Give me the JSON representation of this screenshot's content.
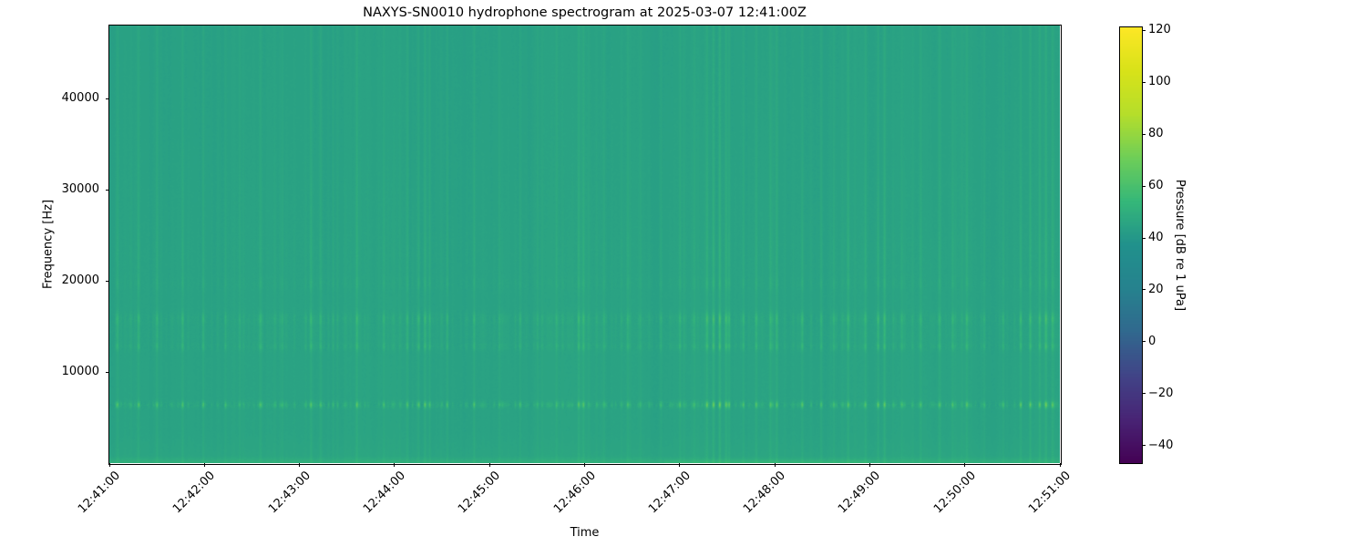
{
  "figure": {
    "title": "NAXYS-SN0010 hydrophone spectrogram at 2025-03-07 12:41:00Z",
    "background_color": "#ffffff"
  },
  "chart_data": {
    "type": "heatmap",
    "subtype": "spectrogram",
    "title": "NAXYS-SN0010 hydrophone spectrogram at 2025-03-07 12:41:00Z",
    "xlabel": "Time",
    "ylabel": "Frequency [Hz]",
    "x_ticks": [
      "12:41:00",
      "12:42:00",
      "12:43:00",
      "12:44:00",
      "12:45:00",
      "12:46:00",
      "12:47:00",
      "12:48:00",
      "12:49:00",
      "12:50:00",
      "12:51:00"
    ],
    "x_span_seconds": 600,
    "y_ticks": [
      10000,
      20000,
      30000,
      40000
    ],
    "ylim_hz": [
      0,
      48000
    ],
    "grid": false,
    "colorbar": {
      "label": "Pressure [dB re 1 uPa]",
      "ticks": [
        120,
        100,
        80,
        60,
        40,
        20,
        0,
        -20,
        -40
      ],
      "vmin": -46.7,
      "vmax": 121.1,
      "colormap": "viridis",
      "stops": [
        [
          0.0,
          "#440154"
        ],
        [
          0.1,
          "#482475"
        ],
        [
          0.2,
          "#414487"
        ],
        [
          0.3,
          "#31688e"
        ],
        [
          0.4,
          "#26828e"
        ],
        [
          0.5,
          "#21918c"
        ],
        [
          0.6,
          "#35b779"
        ],
        [
          0.7,
          "#6ece58"
        ],
        [
          0.8,
          "#b5de2b"
        ],
        [
          0.9,
          "#d8e219"
        ],
        [
          1.0,
          "#fde725"
        ]
      ]
    },
    "background_level_db": 45,
    "background_tilt_db_per_48khz": -0.8,
    "tonal_bands": [
      {
        "center_hz": 6400,
        "sigma_hz": 240,
        "amp": 1.0
      },
      {
        "center_hz": 12800,
        "sigma_hz": 320,
        "amp": 0.42
      },
      {
        "center_hz": 14100,
        "sigma_hz": 600,
        "amp": 0.28
      },
      {
        "center_hz": 15800,
        "sigma_hz": 520,
        "amp": 0.5
      },
      {
        "center_hz": 19700,
        "sigma_hz": 500,
        "amp": 0.17
      },
      {
        "center_hz": 22800,
        "sigma_hz": 1800,
        "amp": 0.09
      },
      {
        "center_hz": 28000,
        "sigma_hz": 4000,
        "amp": 0.05
      }
    ],
    "low_freq_strips": [
      {
        "cutoff_hz": 3500,
        "boost_db": 1.2
      },
      {
        "cutoff_hz": 800,
        "boost_db": 4.5
      }
    ],
    "warm_bottom_window": {
      "start_s": 350,
      "end_s": 480,
      "cutoff_hz": 500,
      "boost_db": 3.5
    },
    "transient_events": [
      [
        5,
        6
      ],
      [
        18,
        5
      ],
      [
        30,
        5
      ],
      [
        46,
        5
      ],
      [
        59,
        6
      ],
      [
        73,
        5
      ],
      [
        82,
        4
      ],
      [
        95,
        5
      ],
      [
        109,
        5
      ],
      [
        127,
        8
      ],
      [
        133,
        6
      ],
      [
        141,
        5
      ],
      [
        156,
        8
      ],
      [
        173,
        5
      ],
      [
        188,
        6
      ],
      [
        195,
        7
      ],
      [
        199,
        8
      ],
      [
        202,
        7
      ],
      [
        213,
        6
      ],
      [
        230,
        6
      ],
      [
        246,
        5
      ],
      [
        259,
        5
      ],
      [
        270,
        4
      ],
      [
        282,
        5
      ],
      [
        296,
        8
      ],
      [
        299,
        7
      ],
      [
        312,
        5
      ],
      [
        327,
        6
      ],
      [
        335,
        4
      ],
      [
        348,
        5
      ],
      [
        360,
        6
      ],
      [
        369,
        5
      ],
      [
        377,
        8
      ],
      [
        381,
        9
      ],
      [
        385,
        10
      ],
      [
        389,
        9
      ],
      [
        391,
        8
      ],
      [
        400,
        7
      ],
      [
        408,
        6
      ],
      [
        417,
        7
      ],
      [
        421,
        7
      ],
      [
        437,
        5
      ],
      [
        449,
        6
      ],
      [
        457,
        7
      ],
      [
        466,
        5
      ],
      [
        477,
        5
      ],
      [
        485,
        8
      ],
      [
        489,
        7
      ],
      [
        500,
        5
      ],
      [
        512,
        5
      ],
      [
        524,
        6
      ],
      [
        532,
        5
      ],
      [
        541,
        6
      ],
      [
        552,
        5
      ],
      [
        564,
        5
      ],
      [
        575,
        7
      ],
      [
        581,
        7
      ],
      [
        587,
        8
      ],
      [
        591,
        9
      ],
      [
        595,
        8
      ]
    ],
    "minor_click_train": {
      "seed": 42,
      "min_interval_s": 3,
      "max_interval_s": 7,
      "min_gain_db": 1.0,
      "max_gain_db": 3.5
    },
    "event_broadband_coupling": 0.38,
    "event_band_coupling": 2.05,
    "band_dash_gain_db": 4.5,
    "column_noise_db": 1.1,
    "pixel_noise_db": 1.6
  }
}
